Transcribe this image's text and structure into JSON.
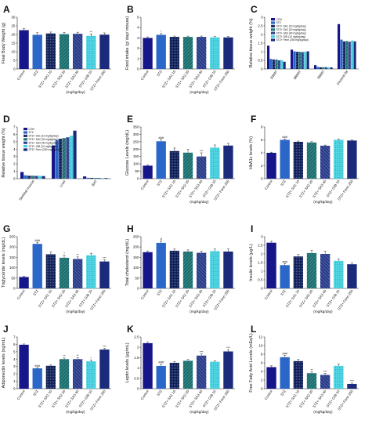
{
  "palette": {
    "control": "#16168a",
    "stz": "#2b66c9",
    "sa1": "#0f1f52",
    "sa2": "#1b6d6d",
    "sa3": "#2a3c88",
    "gb": "#55d8e6",
    "fenn": "#1b2a7a"
  },
  "legend_labels": [
    "CON",
    "STZ",
    "STZ+ SA1 (10 mg/kg/day)",
    "STZ+ SA2 (20 mg/kg/day)",
    "STZ+ SA3 (40 mg/kg/day)",
    "STZ+ GIB (10 mg/kg/day)",
    "STZ+ Fenn (250 mg/kg/day)"
  ],
  "unit_label": "(mg/kg/day)",
  "chart_data": [
    {
      "panel": "A",
      "type": "bar",
      "categories": [
        "Control",
        "STZ",
        "STZ+ SA1 10",
        "STZ+ SA2 20",
        "STZ+ SA3 40",
        "STZ+ GIB 10",
        "STZ+ Fenn 250"
      ],
      "values": [
        22.5,
        19.8,
        20.6,
        20.2,
        20.4,
        19.2,
        19.9
      ],
      "errors": [
        1.0,
        1.2,
        0.8,
        0.9,
        0.9,
        1.1,
        1.0
      ],
      "sig": [
        "",
        "",
        "",
        "",
        "",
        "**",
        ""
      ],
      "ylabel": "Final Body Weight (g)",
      "ylim": [
        0,
        30
      ],
      "yticks": [
        0,
        5,
        10,
        15,
        20,
        25,
        30
      ]
    },
    {
      "panel": "B",
      "type": "bar",
      "categories": [
        "Control",
        "STZ",
        "STZ+ SA1 10",
        "STZ+ SA2 20",
        "STZ+ SA3 40",
        "STZ+ GIB 10",
        "STZ+ Fenn 250"
      ],
      "values": [
        3.0,
        3.3,
        3.1,
        3.1,
        3.1,
        3.05,
        3.05
      ],
      "errors": [
        0.1,
        0.12,
        0.08,
        0.08,
        0.08,
        0.08,
        0.08
      ],
      "sig": [
        "",
        "*",
        "",
        "",
        "",
        "",
        ""
      ],
      "ylabel": "Food intake (g/ day/ mouse)",
      "ylim": [
        0,
        5
      ],
      "yticks": [
        0,
        1,
        2,
        3,
        4,
        5
      ]
    },
    {
      "panel": "C",
      "type": "grouped-bar",
      "groups": [
        "EWAT",
        "MWAT",
        "RWAT",
        "Visceral fat"
      ],
      "values": [
        [
          1.35,
          0.58,
          0.55,
          0.55,
          0.5,
          0.52,
          0.42
        ],
        [
          1.12,
          1.02,
          1.0,
          1.0,
          0.98,
          1.0,
          1.02
        ],
        [
          0.22,
          0.12,
          0.1,
          0.1,
          0.1,
          0.1,
          0.09
        ],
        [
          2.6,
          1.7,
          1.6,
          1.62,
          1.58,
          1.65,
          1.6
        ]
      ],
      "ylabel": "Relative tissue weight (%)",
      "ylim": [
        0,
        3
      ],
      "yticks": [
        0,
        0.5,
        1,
        1.5,
        2,
        2.5,
        3
      ]
    },
    {
      "panel": "D",
      "type": "grouped-bar",
      "groups": [
        "Skeletal muscle",
        "Liver",
        "BAT"
      ],
      "values": [
        [
          0.9,
          0.45,
          0.4,
          0.4,
          0.38,
          0.38,
          0.35
        ],
        [
          4.5,
          5.2,
          5.4,
          5.5,
          5.6,
          5.8,
          6.5
        ],
        [
          0.3,
          0.12,
          0.11,
          0.1,
          0.1,
          0.1,
          0.09
        ]
      ],
      "ylabel": "Relative tissue weight (%)",
      "ylim": [
        0,
        7
      ],
      "yticks": [
        0,
        1,
        2,
        3,
        4,
        5,
        6,
        7
      ]
    },
    {
      "panel": "E",
      "type": "bar",
      "categories": [
        "Control",
        "STZ",
        "STZ+ SA1 10",
        "STZ+ SA2 20",
        "STZ+ SA3 40",
        "STZ+ GIB 10",
        "STZ+ Fenn 250"
      ],
      "values": [
        88,
        253,
        187,
        176,
        150,
        210,
        224
      ],
      "errors": [
        5,
        12,
        20,
        22,
        25,
        18,
        15
      ],
      "sig": [
        "",
        "###",
        "",
        "",
        "***",
        "",
        ""
      ],
      "ylabel": "Glucose Levels (mg/dL)",
      "ylim": [
        0,
        350
      ],
      "yticks": [
        0,
        50,
        100,
        150,
        200,
        250,
        300,
        350
      ]
    },
    {
      "panel": "F",
      "type": "bar",
      "categories": [
        "Control",
        "STZ",
        "STZ+ SA1 10",
        "STZ+ SA2 20",
        "STZ+ SA3 40",
        "STZ+ GIB 10",
        "STZ+ Fenn 250"
      ],
      "values": [
        4.0,
        6.0,
        5.7,
        5.6,
        5.1,
        6.0,
        5.9
      ],
      "errors": [
        0.1,
        0.15,
        0.12,
        0.12,
        0.1,
        0.12,
        0.1
      ],
      "sig": [
        "",
        "###",
        "",
        "",
        "",
        "",
        ""
      ],
      "ylabel": "HbA1c levels (%)",
      "ylim": [
        0,
        8
      ],
      "yticks": [
        0,
        2,
        4,
        6,
        8
      ]
    },
    {
      "panel": "G",
      "type": "bar",
      "categories": [
        "Control",
        "STZ",
        "STZ+ SA1 10",
        "STZ+ SA2 20",
        "STZ+ SA3 40",
        "STZ+ GIB 10",
        "STZ+ Fenn 250"
      ],
      "values": [
        55,
        215,
        165,
        148,
        142,
        160,
        130
      ],
      "errors": [
        4,
        8,
        10,
        12,
        10,
        10,
        8
      ],
      "sig": [
        "",
        "###",
        "",
        "*",
        "**",
        "",
        "***"
      ],
      "ylabel": "Triglyceride levels (mg/dL)",
      "ylim": [
        0,
        250
      ],
      "yticks": [
        0,
        50,
        100,
        150,
        200,
        250
      ]
    },
    {
      "panel": "H",
      "type": "bar",
      "categories": [
        "Control",
        "STZ",
        "STZ+ SA1 10",
        "STZ+ SA2 20",
        "STZ+ SA3 40",
        "STZ+ GIB 10",
        "STZ+ Fenn 250"
      ],
      "values": [
        175,
        220,
        182,
        178,
        172,
        180,
        178
      ],
      "errors": [
        6,
        10,
        8,
        8,
        8,
        10,
        12
      ],
      "sig": [
        "",
        "#",
        "",
        "",
        "",
        "",
        ""
      ],
      "ylabel": "Total cholesterol (mg/dL)",
      "ylim": [
        0,
        250
      ],
      "yticks": [
        0,
        50,
        100,
        150,
        200,
        250
      ]
    },
    {
      "panel": "I",
      "type": "bar",
      "categories": [
        "Control",
        "STZ",
        "STZ+ SA1 10",
        "STZ+ SA2 20",
        "STZ+ SA3 40",
        "STZ+ GIB 10",
        "STZ+ Fenn 250"
      ],
      "values": [
        2.65,
        1.35,
        1.85,
        2.05,
        2.0,
        1.6,
        1.4
      ],
      "errors": [
        0.08,
        0.08,
        0.12,
        0.15,
        0.15,
        0.1,
        0.08
      ],
      "sig": [
        "",
        "###",
        "",
        "",
        "",
        "",
        ""
      ],
      "ylabel": "Insulin levels (µg/L)",
      "ylim": [
        0,
        3
      ],
      "yticks": [
        0,
        0.5,
        1,
        1.5,
        2,
        2.5,
        3
      ]
    },
    {
      "panel": "J",
      "type": "bar",
      "categories": [
        "Control",
        "STZ",
        "STZ+ SA1 10",
        "STZ+ SA2 20",
        "STZ+ SA3 40",
        "STZ+ GIB 10",
        "STZ+ Fenn 250"
      ],
      "values": [
        5.95,
        2.75,
        3.1,
        4.0,
        4.0,
        3.7,
        5.3
      ],
      "errors": [
        0.1,
        0.1,
        0.12,
        0.15,
        0.2,
        0.2,
        0.15
      ],
      "sig": [
        "",
        "###",
        "",
        "**",
        "**",
        "*",
        "***"
      ],
      "ylabel": "Adiponectin levels (ng/mL)",
      "ylim": [
        0,
        7
      ],
      "yticks": [
        0,
        1,
        2,
        3,
        4,
        5,
        6,
        7
      ]
    },
    {
      "panel": "K",
      "type": "bar",
      "categories": [
        "Control",
        "STZ",
        "STZ+ SA1 10",
        "STZ+ SA2 20",
        "STZ+ SA3 40",
        "STZ+ GIB 10",
        "STZ+ Fenn 250"
      ],
      "values": [
        2.2,
        1.1,
        1.25,
        1.35,
        1.6,
        1.3,
        1.8
      ],
      "errors": [
        0.05,
        0.08,
        0.06,
        0.06,
        0.08,
        0.05,
        0.08
      ],
      "sig": [
        "",
        "###",
        "",
        "",
        "***",
        "",
        "***"
      ],
      "ylabel": "Leptin levels (µg/mL)",
      "ylim": [
        0,
        2.5
      ],
      "yticks": [
        0,
        0.5,
        1,
        1.5,
        2,
        2.5
      ]
    },
    {
      "panel": "L",
      "type": "bar",
      "categories": [
        "Control",
        "STZ",
        "STZ+ SA1 10",
        "STZ+ SA2 20",
        "STZ+ SA3 40",
        "STZ+ GIB 10",
        "STZ+ Fenn 250"
      ],
      "values": [
        5.0,
        7.3,
        6.4,
        3.6,
        3.2,
        5.3,
        1.1
      ],
      "errors": [
        0.3,
        0.4,
        0.4,
        0.3,
        0.3,
        0.4,
        0.2
      ],
      "sig": [
        "",
        "###",
        "",
        "**",
        "***",
        "",
        "***"
      ],
      "ylabel": "Free Fatty Acid Levels (mEq/L)",
      "ylim": [
        0,
        12
      ],
      "yticks": [
        0,
        2,
        4,
        6,
        8,
        10,
        12
      ]
    }
  ]
}
